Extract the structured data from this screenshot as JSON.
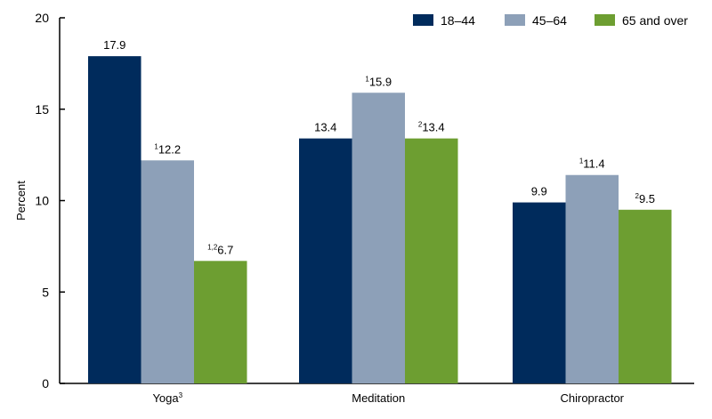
{
  "chart_data": {
    "type": "bar",
    "title": "",
    "xlabel": "",
    "ylabel": "Percent",
    "ylim": [
      0,
      20
    ],
    "yticks": [
      0,
      5,
      10,
      15,
      20
    ],
    "grid": false,
    "legend_position": "top-right",
    "categories": [
      {
        "label": "Yoga",
        "sup": "3"
      },
      {
        "label": "Meditation",
        "sup": ""
      },
      {
        "label": "Chiropractor",
        "sup": ""
      }
    ],
    "series": [
      {
        "name": "18–44",
        "color": "#002b5c",
        "values": [
          17.9,
          13.4,
          9.9
        ],
        "label_sups": [
          "",
          "",
          ""
        ]
      },
      {
        "name": "45–64",
        "color": "#8da0b8",
        "values": [
          12.2,
          15.9,
          11.4
        ],
        "label_sups": [
          "1",
          "1",
          "1"
        ]
      },
      {
        "name": "65 and over",
        "color": "#6d9e31",
        "values": [
          6.7,
          13.4,
          9.5
        ],
        "label_sups": [
          "1,2",
          "2",
          "2"
        ]
      }
    ]
  }
}
